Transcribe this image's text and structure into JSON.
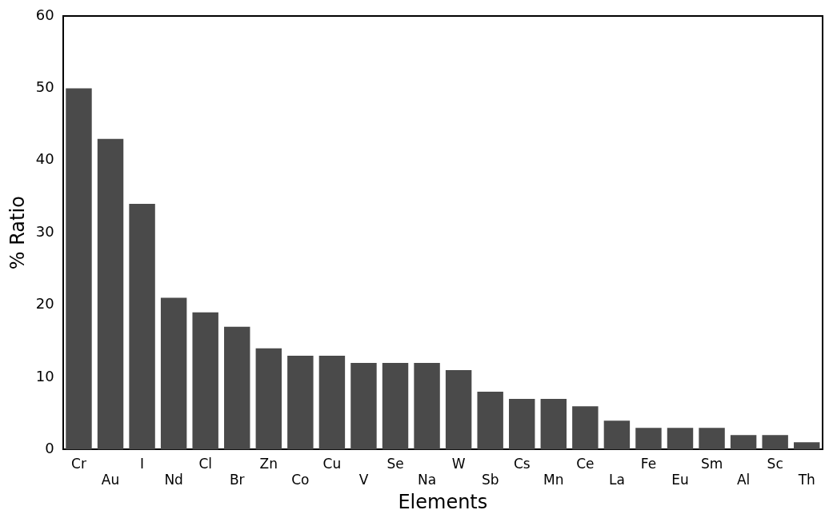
{
  "chart_data": {
    "type": "bar",
    "xlabel": "Elements",
    "ylabel": "% Ratio",
    "categories": [
      "Cr",
      "Au",
      "I",
      "Nd",
      "Cl",
      "Br",
      "Zn",
      "Co",
      "Cu",
      "V",
      "Se",
      "Na",
      "W",
      "Sb",
      "Cs",
      "Mn",
      "Ce",
      "La",
      "Fe",
      "Eu",
      "Sm",
      "Al",
      "Sc",
      "Th"
    ],
    "values": [
      50,
      43,
      34,
      21,
      19,
      17,
      14,
      13,
      13,
      12,
      12,
      12,
      11,
      8,
      7,
      7,
      6,
      4,
      3,
      3,
      3,
      2,
      2,
      1
    ],
    "color": "#4a4a4a",
    "ylim": [
      0,
      60
    ],
    "yticks": [
      0,
      10,
      20,
      30,
      40,
      50,
      60
    ],
    "grid": false,
    "legend": false
  }
}
